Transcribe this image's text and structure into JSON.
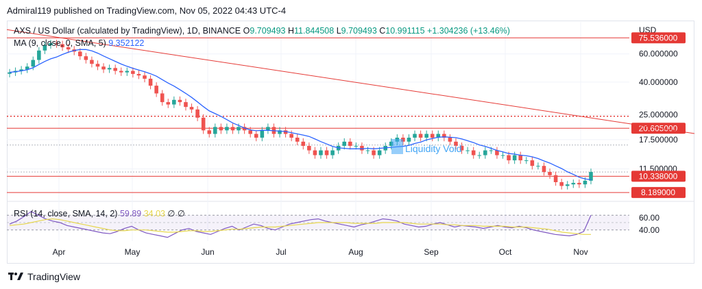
{
  "header": {
    "publisher": "Admiral119 published on TradingView.com, Nov 05, 2022 04:43 UTC-4"
  },
  "legend": {
    "title": "AXS / US Dollar (calculated by TradingView), 1D, BINANCE",
    "o_label": "O",
    "o_value": "9.709493",
    "h_label": "H",
    "h_value": "11.844508",
    "l_label": "L",
    "l_value": "9.709493",
    "c_label": "C",
    "c_value": "10.991115",
    "change": "+1.304236 (+13.46%)",
    "ma_label": "MA (9, close, 0, SMA, 5)",
    "ma_value": "9.352122",
    "rsi_label": "RSI (14, close, SMA, 14, 2)",
    "rsi_value": "59.89",
    "rsi_ma_value": "34.03",
    "rsi_icons": "∅ ∅"
  },
  "annotation": {
    "text": "Liquidity Void"
  },
  "footer": {
    "brand": "TradingView"
  },
  "colors": {
    "up": "#26a69a",
    "down": "#ef5350",
    "ma": "#2962ff",
    "level": "#e53935",
    "rsi": "#7e57c2",
    "rsi_ma": "#e6d64b",
    "void": "#42a5f5",
    "grid": "#e0e3eb"
  },
  "chart_data": [
    {
      "type": "candlestick",
      "title": "AXS / US Dollar (calculated by TradingView), 1D, BINANCE",
      "currency": "USD",
      "scale": "log",
      "x": [
        "Apr",
        "May",
        "Jun",
        "Jul",
        "Aug",
        "Sep",
        "Oct",
        "Nov"
      ],
      "y_ticks": [
        "60.000000",
        "40.000000",
        "25.000000",
        "17.500000",
        "11.500000"
      ],
      "price_labels": [
        "75.536000",
        "20.605000",
        "10.338000",
        "8.189000"
      ],
      "horizontal_levels": [
        75.536,
        20.605,
        10.338,
        8.189
      ],
      "dotted_levels": [
        24.5,
        16.2,
        11.0
      ],
      "trendline": {
        "from": [
          "Mar",
          85
        ],
        "to": [
          "Nov",
          19.5
        ]
      },
      "ylim": [
        7.5,
        95
      ],
      "grid": true,
      "closes": [
        46,
        47,
        48,
        50,
        55,
        63,
        68,
        70,
        69,
        66,
        64,
        62,
        58,
        55,
        52,
        50,
        48,
        49,
        47,
        46,
        47,
        45,
        44,
        42,
        38,
        34,
        30,
        29,
        31,
        30,
        28,
        27,
        24,
        20,
        19,
        21,
        20,
        21,
        20,
        21,
        20,
        19,
        18,
        20,
        21,
        19,
        20,
        19,
        18,
        17,
        16,
        15,
        14,
        15,
        14,
        15,
        16,
        17,
        16,
        16,
        15,
        15,
        14,
        15,
        16,
        17,
        18,
        17,
        18,
        19,
        18,
        19,
        18,
        19,
        18,
        17,
        16,
        15,
        15,
        14,
        14,
        15,
        15,
        14,
        14,
        13,
        14,
        13,
        13,
        12,
        12,
        11,
        10.5,
        9.5,
        9,
        9.2,
        9.4,
        9.2,
        9.7,
        11
      ]
    },
    {
      "type": "line",
      "title": "RSI (14, close, SMA, 14, 2)",
      "y_ticks": [
        "60.00",
        "40.00"
      ],
      "ylim": [
        25,
        75
      ],
      "series": [
        {
          "name": "RSI",
          "value_label": "59.89",
          "values": [
            48,
            52,
            58,
            65,
            60,
            55,
            52,
            50,
            46,
            44,
            42,
            40,
            38,
            36,
            35,
            38,
            42,
            45,
            40,
            36,
            34,
            32,
            30,
            35,
            40,
            42,
            38,
            36,
            34,
            38,
            42,
            45,
            40,
            44,
            48,
            46,
            42,
            40,
            44,
            48,
            50,
            52,
            54,
            55,
            52,
            50,
            48,
            46,
            44,
            47,
            49,
            52,
            55,
            54,
            52,
            48,
            46,
            44,
            45,
            48,
            50,
            47,
            44,
            46,
            45,
            44,
            42,
            44,
            46,
            44,
            43,
            45,
            43,
            40,
            38,
            36,
            34,
            33,
            32,
            34,
            38,
            60
          ]
        },
        {
          "name": "RSI MA",
          "value_label": "34.03",
          "values": [
            46,
            47,
            48,
            50,
            52,
            54,
            55,
            54,
            52,
            50,
            48,
            46,
            44,
            42,
            40,
            39,
            39,
            40,
            40,
            40,
            39,
            38,
            37,
            37,
            38,
            39,
            39,
            38,
            38,
            39,
            40,
            41,
            41,
            42,
            43,
            44,
            44,
            44,
            45,
            46,
            47,
            48,
            49,
            50,
            50,
            50,
            50,
            50,
            49,
            49,
            49,
            49,
            50,
            50,
            50,
            50,
            49,
            48,
            48,
            48,
            48,
            47,
            47,
            46,
            46,
            46,
            45,
            45,
            45,
            45,
            44,
            44,
            44,
            43,
            42,
            41,
            39,
            37,
            36,
            35,
            34,
            34
          ]
        }
      ]
    }
  ]
}
